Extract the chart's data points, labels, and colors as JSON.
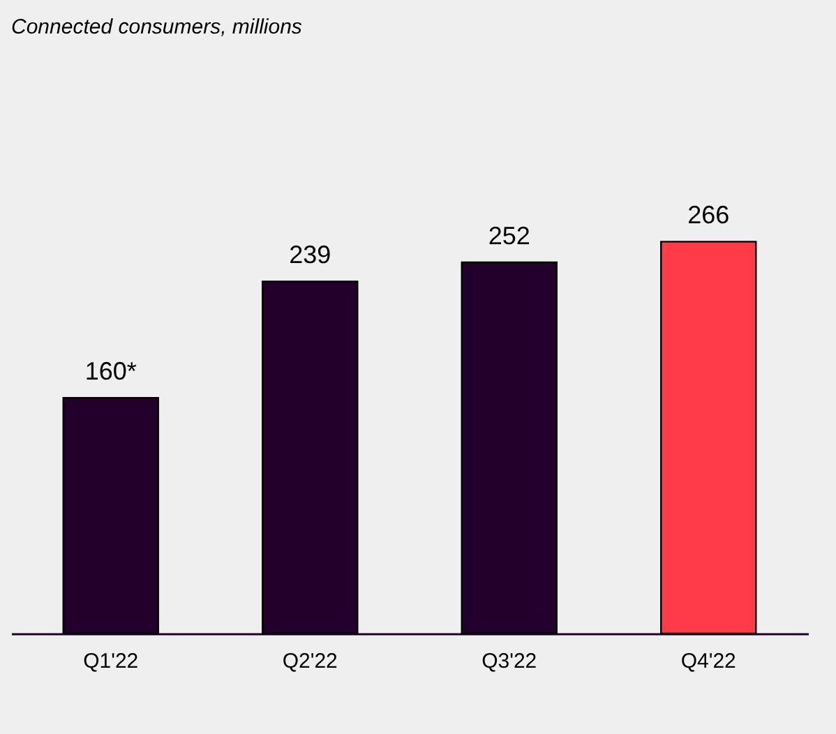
{
  "chart_data": {
    "type": "bar",
    "title": "Connected consumers, millions",
    "categories": [
      "Q1'22",
      "Q2'22",
      "Q3'22",
      "Q4'22"
    ],
    "values": [
      160,
      239,
      252,
      266
    ],
    "value_labels": [
      "160*",
      "239",
      "252",
      "266"
    ],
    "colors": [
      "#22002b",
      "#22002b",
      "#22002b",
      "#ff3b4a"
    ]
  }
}
